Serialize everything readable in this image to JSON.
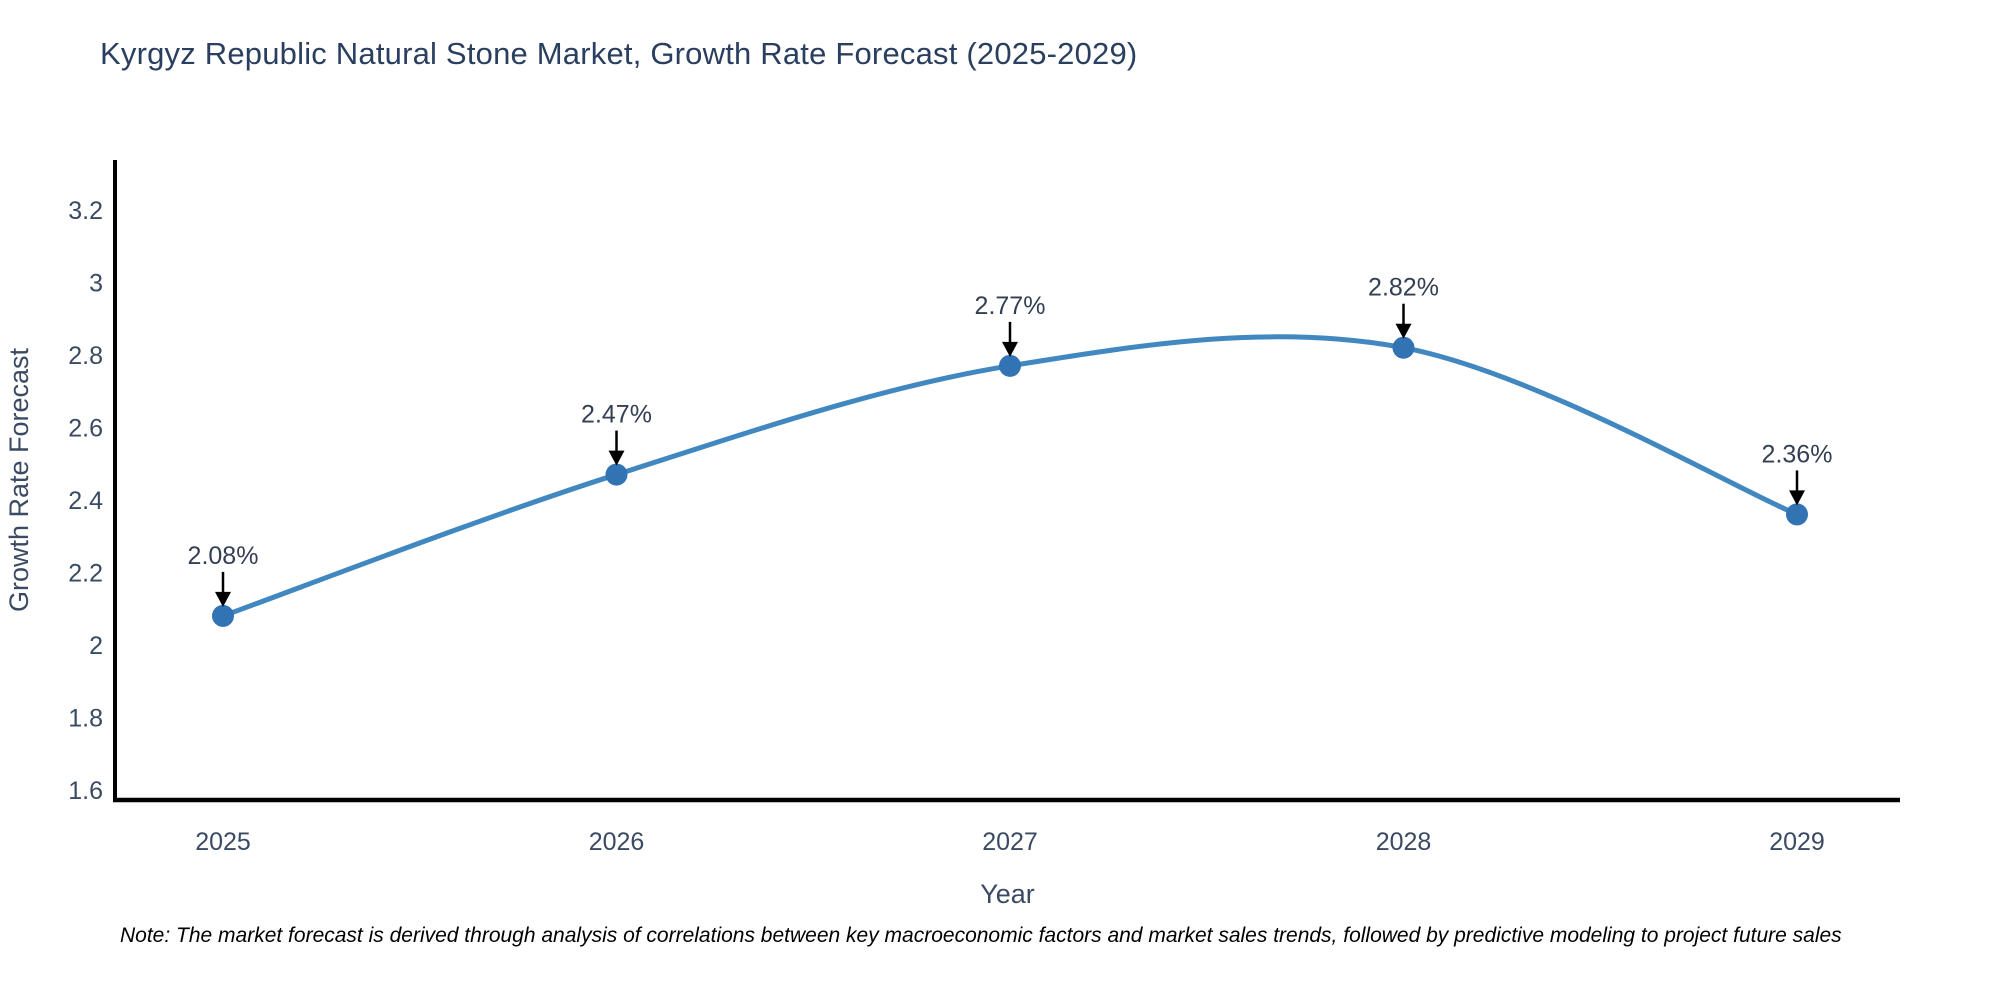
{
  "page": {
    "title": "Kyrgyz Republic Natural Stone Market, Growth Rate Forecast (2025-2029)",
    "note": "Note: The market forecast is derived through analysis of correlations between key macroeconomic factors and market sales trends, followed by predictive modeling to project future sales"
  },
  "chart_data": {
    "type": "line",
    "title": "Kyrgyz Republic Natural Stone Market, Growth Rate Forecast (2025-2029)",
    "xlabel": "Year",
    "ylabel": "Growth Rate Forecast",
    "categories": [
      2025,
      2026,
      2027,
      2028,
      2029
    ],
    "series": [
      {
        "name": "Growth Rate Forecast",
        "values": [
          2.08,
          2.47,
          2.77,
          2.82,
          2.36
        ]
      }
    ],
    "point_labels": [
      "2.08%",
      "2.47%",
      "2.77%",
      "2.82%",
      "2.36%"
    ],
    "yticks": [
      1.6,
      1.8,
      2,
      2.2,
      2.4,
      2.6,
      2.8,
      3,
      3.2
    ],
    "ylim": [
      1.572,
      3.338
    ],
    "grid": false,
    "legend": "none",
    "line_style": "smooth",
    "marker": "circle",
    "annotation_style": "value-label-with-down-arrow"
  },
  "colors": {
    "background": "#ffffff",
    "title_text": "#2a3f5f",
    "tick_text": "#3b4a63",
    "axis_line": "#000000",
    "series_line": "#4187c0",
    "series_marker": "#3173b3",
    "annotation_text": "#333f52",
    "annotation_arrow": "#000000",
    "note_text": "#000000"
  }
}
